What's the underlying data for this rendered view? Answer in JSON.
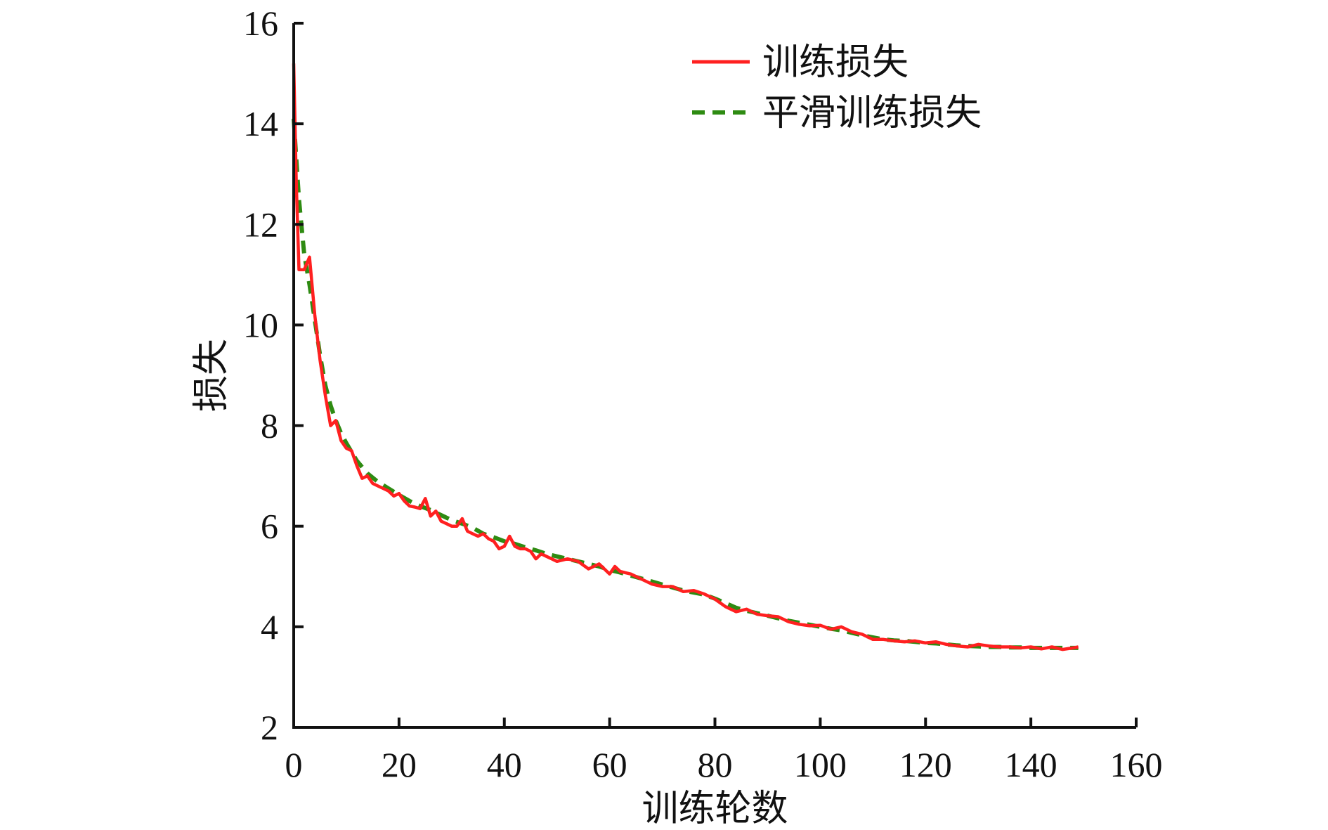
{
  "chart_data": {
    "type": "line",
    "xlabel": "训练轮数",
    "ylabel": "损失",
    "xlim": [
      0,
      160
    ],
    "ylim": [
      2,
      16
    ],
    "xticks": [
      0,
      20,
      40,
      60,
      80,
      100,
      120,
      140,
      160
    ],
    "yticks": [
      2,
      4,
      6,
      8,
      10,
      12,
      14,
      16
    ],
    "grid": false,
    "legend_position": "top-right",
    "series": [
      {
        "name": "训练损失",
        "color": "#ff2020",
        "style": "solid",
        "x": [
          0,
          0.5,
          1,
          2,
          3,
          4,
          5,
          6,
          7,
          8,
          9,
          10,
          11,
          12,
          13,
          14,
          15,
          16,
          17,
          18,
          19,
          20,
          21,
          22,
          23,
          24,
          25,
          26,
          27,
          28,
          29,
          30,
          31,
          32,
          33,
          34,
          35,
          36,
          37,
          38,
          39,
          40,
          41,
          42,
          43,
          44,
          45,
          46,
          47,
          48,
          49,
          50,
          52,
          54,
          56,
          58,
          60,
          61,
          62,
          64,
          66,
          68,
          70,
          72,
          74,
          76,
          78,
          80,
          82,
          84,
          86,
          88,
          90,
          92,
          94,
          96,
          98,
          100,
          102,
          104,
          106,
          108,
          110,
          112,
          114,
          116,
          118,
          120,
          122,
          124,
          126,
          128,
          130,
          132,
          134,
          136,
          138,
          140,
          142,
          144,
          146,
          148,
          149
        ],
        "values": [
          15.2,
          12.8,
          11.1,
          11.1,
          11.35,
          10.2,
          9.3,
          8.6,
          8.0,
          8.1,
          7.7,
          7.55,
          7.5,
          7.2,
          6.95,
          7.0,
          6.85,
          6.8,
          6.75,
          6.7,
          6.6,
          6.65,
          6.5,
          6.4,
          6.38,
          6.35,
          6.55,
          6.2,
          6.3,
          6.1,
          6.05,
          6.0,
          6.0,
          6.15,
          5.9,
          5.85,
          5.8,
          5.85,
          5.75,
          5.7,
          5.55,
          5.6,
          5.8,
          5.6,
          5.55,
          5.55,
          5.5,
          5.35,
          5.45,
          5.4,
          5.35,
          5.3,
          5.35,
          5.3,
          5.15,
          5.25,
          5.05,
          5.2,
          5.1,
          5.05,
          4.95,
          4.85,
          4.8,
          4.8,
          4.7,
          4.72,
          4.65,
          4.55,
          4.4,
          4.3,
          4.35,
          4.25,
          4.22,
          4.2,
          4.1,
          4.05,
          4.02,
          4.03,
          3.95,
          4.0,
          3.9,
          3.85,
          3.75,
          3.75,
          3.72,
          3.7,
          3.72,
          3.68,
          3.7,
          3.65,
          3.62,
          3.6,
          3.65,
          3.62,
          3.6,
          3.6,
          3.58,
          3.6,
          3.56,
          3.6,
          3.55,
          3.58,
          3.6
        ]
      },
      {
        "name": "平滑训练损失",
        "color": "#2e8b12",
        "style": "dashed",
        "x": [
          0,
          0.5,
          1,
          2,
          3,
          4,
          5,
          6,
          7,
          8,
          9,
          10,
          12,
          14,
          16,
          18,
          20,
          22,
          24,
          26,
          28,
          30,
          32,
          34,
          36,
          38,
          40,
          42,
          44,
          46,
          48,
          50,
          52,
          54,
          56,
          58,
          60,
          62,
          64,
          66,
          68,
          70,
          72,
          74,
          76,
          78,
          80,
          82,
          84,
          86,
          88,
          90,
          92,
          94,
          96,
          98,
          100,
          102,
          104,
          106,
          108,
          110,
          112,
          114,
          116,
          118,
          120,
          122,
          124,
          126,
          128,
          130,
          132,
          134,
          136,
          138,
          140,
          142,
          144,
          146,
          148,
          149
        ],
        "values": [
          14.1,
          13.3,
          12.5,
          11.4,
          10.8,
          10.1,
          9.4,
          8.8,
          8.4,
          8.1,
          7.85,
          7.65,
          7.3,
          7.05,
          6.88,
          6.75,
          6.62,
          6.5,
          6.4,
          6.32,
          6.22,
          6.12,
          6.05,
          5.97,
          5.85,
          5.78,
          5.7,
          5.65,
          5.58,
          5.52,
          5.45,
          5.4,
          5.35,
          5.3,
          5.25,
          5.2,
          5.13,
          5.08,
          5.02,
          4.96,
          4.9,
          4.84,
          4.78,
          4.72,
          4.68,
          4.64,
          4.56,
          4.47,
          4.38,
          4.32,
          4.27,
          4.22,
          4.17,
          4.12,
          4.08,
          4.04,
          4.0,
          3.96,
          3.93,
          3.88,
          3.83,
          3.79,
          3.75,
          3.73,
          3.72,
          3.7,
          3.68,
          3.67,
          3.65,
          3.63,
          3.62,
          3.61,
          3.6,
          3.6,
          3.59,
          3.59,
          3.58,
          3.58,
          3.58,
          3.58,
          3.58,
          3.58
        ]
      }
    ]
  }
}
